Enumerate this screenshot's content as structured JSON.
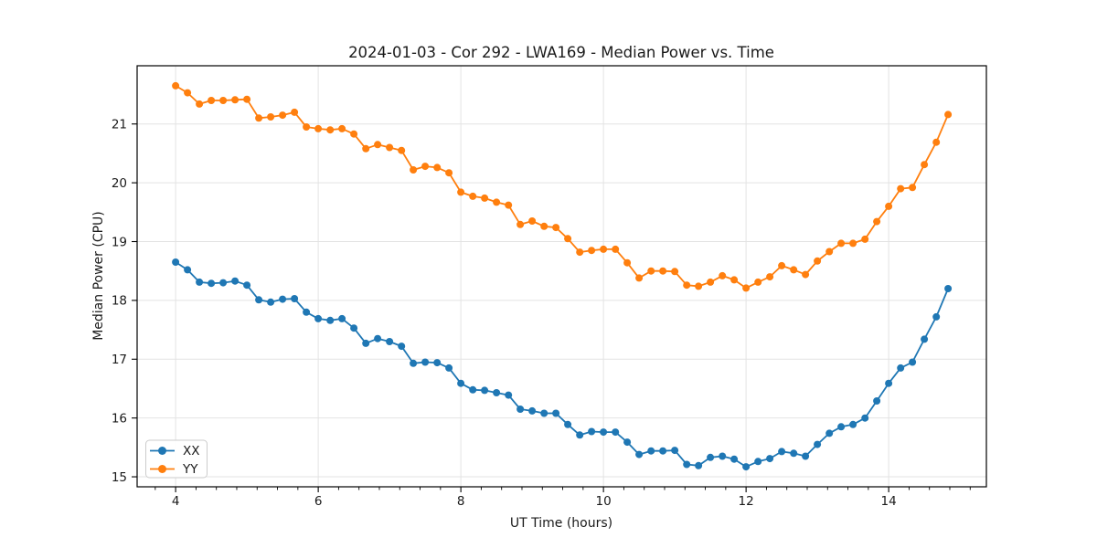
{
  "chart_data": {
    "type": "line",
    "title": "2024-01-03 - Cor 292 - LWA169 - Median Power vs. Time",
    "xlabel": "UT Time (hours)",
    "ylabel": "Median Power (CPU)",
    "xlim": [
      3.46,
      15.37
    ],
    "ylim": [
      14.83,
      21.99
    ],
    "x_major_ticks": [
      4,
      6,
      8,
      10,
      12,
      14
    ],
    "y_major_ticks": [
      15,
      16,
      17,
      18,
      19,
      20,
      21
    ],
    "x_minor_divisions": 7,
    "grid": true,
    "legend_position": "lower-left",
    "marker": "circle",
    "sample_interval_hours": 0.1667,
    "x": [
      4.0,
      4.167,
      4.333,
      4.5,
      4.667,
      4.833,
      5.0,
      5.167,
      5.333,
      5.5,
      5.667,
      5.833,
      6.0,
      6.167,
      6.333,
      6.5,
      6.667,
      6.833,
      7.0,
      7.167,
      7.333,
      7.5,
      7.667,
      7.833,
      8.0,
      8.167,
      8.333,
      8.5,
      8.667,
      8.833,
      9.0,
      9.167,
      9.333,
      9.5,
      9.667,
      9.833,
      10.0,
      10.167,
      10.333,
      10.5,
      10.667,
      10.833,
      11.0,
      11.167,
      11.333,
      11.5,
      11.667,
      11.833,
      12.0,
      12.167,
      12.333,
      12.5,
      12.667,
      12.833,
      13.0,
      13.167,
      13.333,
      13.5,
      13.667,
      13.833,
      14.0,
      14.167,
      14.333,
      14.5,
      14.667,
      14.833
    ],
    "series": [
      {
        "name": "XX",
        "color": "#1f77b4",
        "values": [
          18.65,
          18.52,
          18.31,
          18.29,
          18.3,
          18.33,
          18.26,
          18.01,
          17.97,
          18.02,
          18.03,
          17.8,
          17.69,
          17.66,
          17.69,
          17.53,
          17.27,
          17.35,
          17.3,
          17.22,
          16.93,
          16.95,
          16.94,
          16.85,
          16.59,
          16.48,
          16.47,
          16.43,
          16.39,
          16.15,
          16.12,
          16.08,
          16.08,
          15.89,
          15.71,
          15.77,
          15.76,
          15.76,
          15.59,
          15.38,
          15.44,
          15.44,
          15.45,
          15.21,
          15.19,
          15.33,
          15.35,
          15.3,
          15.17,
          15.26,
          15.31,
          15.43,
          15.4,
          15.35,
          15.55,
          15.74,
          15.85,
          15.89,
          16.0,
          16.29,
          16.59,
          16.85,
          16.95,
          17.34,
          17.72,
          18.2
        ]
      },
      {
        "name": "YY",
        "color": "#ff7f0e",
        "values": [
          21.65,
          21.53,
          21.34,
          21.4,
          21.4,
          21.41,
          21.42,
          21.1,
          21.12,
          21.15,
          21.2,
          20.95,
          20.92,
          20.9,
          20.92,
          20.83,
          20.58,
          20.65,
          20.6,
          20.55,
          20.22,
          20.28,
          20.26,
          20.17,
          19.84,
          19.77,
          19.74,
          19.67,
          19.62,
          19.29,
          19.35,
          19.26,
          19.24,
          19.05,
          18.82,
          18.85,
          18.87,
          18.87,
          18.64,
          18.38,
          18.5,
          18.5,
          18.49,
          18.26,
          18.24,
          18.31,
          18.42,
          18.35,
          18.21,
          18.31,
          18.4,
          18.59,
          18.52,
          18.44,
          18.67,
          18.83,
          18.97,
          18.97,
          19.04,
          19.34,
          19.6,
          19.9,
          19.92,
          20.31,
          20.69,
          21.16
        ]
      }
    ],
    "style": {
      "background": "#ffffff",
      "grid_color": "#e3e3e3",
      "spine_color": "#000000",
      "text_color": "#1a1a1a",
      "legend_border_color": "#cccccc",
      "line_width": 1.8,
      "marker_radius": 4
    }
  }
}
